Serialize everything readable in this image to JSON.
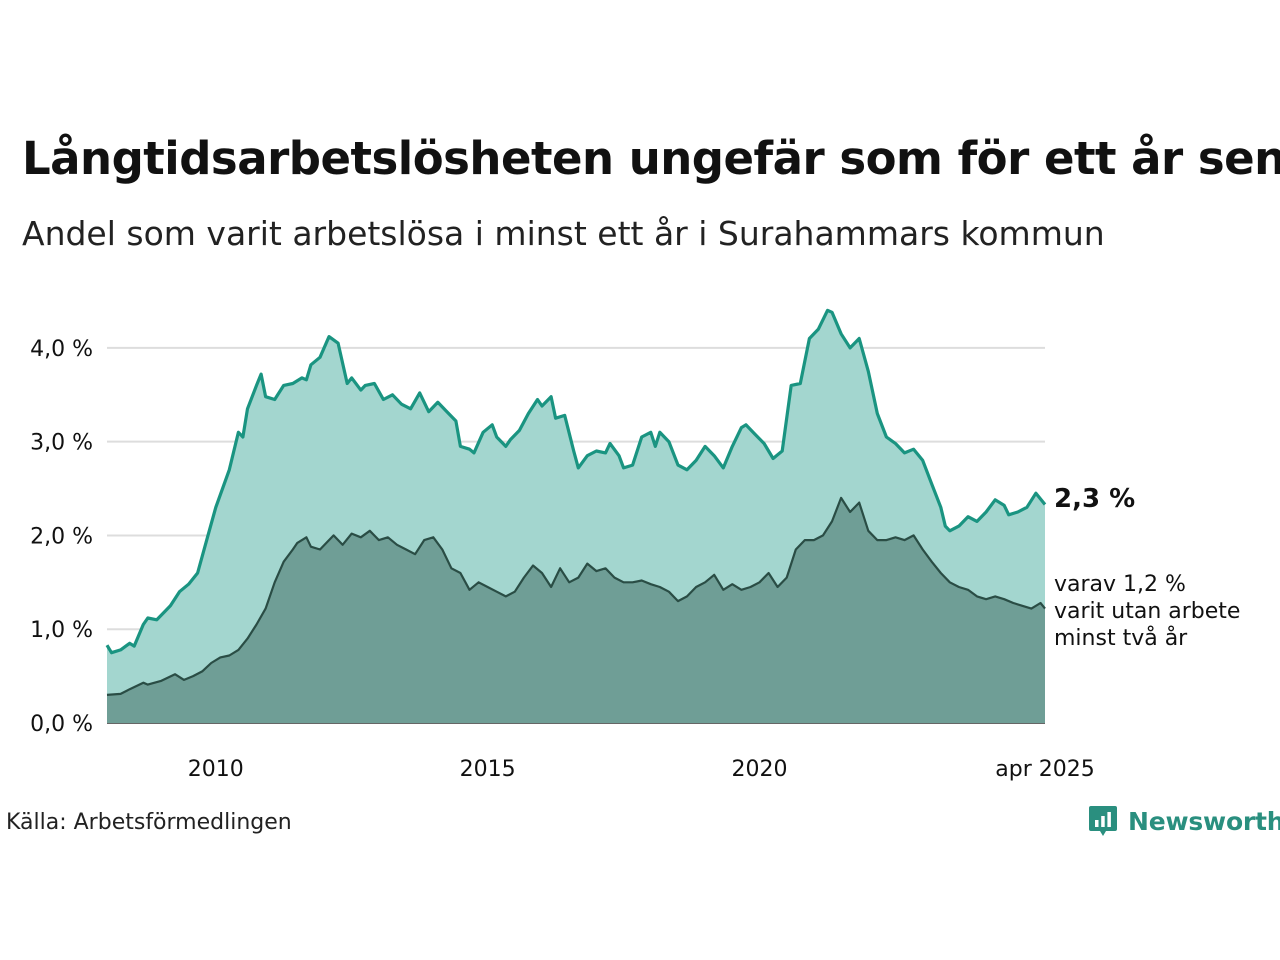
{
  "header": {
    "title": "Långtidsarbetslösheten ungefär som för ett år sen",
    "subtitle": "Andel som varit arbetslösa i minst ett år i Surahammars kommun"
  },
  "footer": {
    "source": "Källa: Arbetsförmedlingen",
    "brand": "Newsworthy"
  },
  "labels": {
    "end_value": "2,3 %",
    "sub_line1": "varav 1,2 %",
    "sub_line2": "varit utan arbete",
    "sub_line3": "minst två år"
  },
  "colors": {
    "main_line": "#1a9481",
    "main_fill": "#a3d6cf",
    "sub_line": "#2a4d45",
    "sub_fill": "#6f9e96",
    "grid": "#dddddd",
    "brand": "#2a8f7f"
  },
  "chart_data": {
    "type": "area",
    "x_start": "2008-01",
    "x_end": "2025-04",
    "x_unit": "month",
    "ylim": [
      0,
      4.5
    ],
    "yticks": [
      0,
      1,
      2,
      3,
      4
    ],
    "ytick_labels": [
      "0,0 %",
      "1,0 %",
      "2,0 %",
      "3,0 %",
      "4,0 %"
    ],
    "xtick_labels": [
      {
        "x": "2010-01",
        "label": "2010"
      },
      {
        "x": "2015-01",
        "label": "2015"
      },
      {
        "x": "2020-01",
        "label": "2020"
      },
      {
        "x": "2025-04",
        "label": "apr 2025"
      }
    ],
    "grid": true,
    "series": [
      {
        "key": "total",
        "anchors": [
          [
            "2008-01",
            0.83
          ],
          [
            "2008-02",
            0.75
          ],
          [
            "2008-04",
            0.78
          ],
          [
            "2008-06",
            0.85
          ],
          [
            "2008-07",
            0.82
          ],
          [
            "2008-09",
            1.05
          ],
          [
            "2008-10",
            1.12
          ],
          [
            "2008-12",
            1.1
          ],
          [
            "2009-03",
            1.25
          ],
          [
            "2009-05",
            1.4
          ],
          [
            "2009-07",
            1.48
          ],
          [
            "2009-09",
            1.6
          ],
          [
            "2009-11",
            1.95
          ],
          [
            "2010-01",
            2.3
          ],
          [
            "2010-04",
            2.7
          ],
          [
            "2010-06",
            3.1
          ],
          [
            "2010-07",
            3.05
          ],
          [
            "2010-08",
            3.35
          ],
          [
            "2010-10",
            3.6
          ],
          [
            "2010-11",
            3.72
          ],
          [
            "2010-12",
            3.48
          ],
          [
            "2011-02",
            3.45
          ],
          [
            "2011-04",
            3.6
          ],
          [
            "2011-06",
            3.62
          ],
          [
            "2011-08",
            3.68
          ],
          [
            "2011-09",
            3.66
          ],
          [
            "2011-10",
            3.82
          ],
          [
            "2011-12",
            3.9
          ],
          [
            "2012-02",
            4.12
          ],
          [
            "2012-04",
            4.05
          ],
          [
            "2012-06",
            3.62
          ],
          [
            "2012-07",
            3.68
          ],
          [
            "2012-09",
            3.55
          ],
          [
            "2012-10",
            3.6
          ],
          [
            "2012-12",
            3.62
          ],
          [
            "2013-02",
            3.45
          ],
          [
            "2013-04",
            3.5
          ],
          [
            "2013-06",
            3.4
          ],
          [
            "2013-08",
            3.35
          ],
          [
            "2013-10",
            3.52
          ],
          [
            "2013-12",
            3.32
          ],
          [
            "2014-02",
            3.42
          ],
          [
            "2014-04",
            3.32
          ],
          [
            "2014-06",
            3.22
          ],
          [
            "2014-07",
            2.95
          ],
          [
            "2014-09",
            2.92
          ],
          [
            "2014-10",
            2.88
          ],
          [
            "2014-12",
            3.1
          ],
          [
            "2015-02",
            3.18
          ],
          [
            "2015-03",
            3.05
          ],
          [
            "2015-05",
            2.95
          ],
          [
            "2015-06",
            3.02
          ],
          [
            "2015-08",
            3.12
          ],
          [
            "2015-10",
            3.3
          ],
          [
            "2015-12",
            3.45
          ],
          [
            "2016-01",
            3.38
          ],
          [
            "2016-03",
            3.48
          ],
          [
            "2016-04",
            3.25
          ],
          [
            "2016-06",
            3.28
          ],
          [
            "2016-08",
            2.9
          ],
          [
            "2016-09",
            2.72
          ],
          [
            "2016-11",
            2.85
          ],
          [
            "2017-01",
            2.9
          ],
          [
            "2017-03",
            2.88
          ],
          [
            "2017-04",
            2.98
          ],
          [
            "2017-06",
            2.85
          ],
          [
            "2017-07",
            2.72
          ],
          [
            "2017-09",
            2.75
          ],
          [
            "2017-11",
            3.05
          ],
          [
            "2018-01",
            3.1
          ],
          [
            "2018-02",
            2.95
          ],
          [
            "2018-03",
            3.1
          ],
          [
            "2018-05",
            3.0
          ],
          [
            "2018-07",
            2.75
          ],
          [
            "2018-09",
            2.7
          ],
          [
            "2018-11",
            2.8
          ],
          [
            "2019-01",
            2.95
          ],
          [
            "2019-03",
            2.85
          ],
          [
            "2019-05",
            2.72
          ],
          [
            "2019-07",
            2.95
          ],
          [
            "2019-09",
            3.15
          ],
          [
            "2019-10",
            3.18
          ],
          [
            "2019-12",
            3.08
          ],
          [
            "2020-02",
            2.98
          ],
          [
            "2020-04",
            2.82
          ],
          [
            "2020-06",
            2.9
          ],
          [
            "2020-08",
            3.6
          ],
          [
            "2020-10",
            3.62
          ],
          [
            "2020-12",
            4.1
          ],
          [
            "2021-02",
            4.2
          ],
          [
            "2021-04",
            4.4
          ],
          [
            "2021-05",
            4.38
          ],
          [
            "2021-07",
            4.15
          ],
          [
            "2021-09",
            4.0
          ],
          [
            "2021-11",
            4.1
          ],
          [
            "2022-01",
            3.75
          ],
          [
            "2022-03",
            3.3
          ],
          [
            "2022-05",
            3.05
          ],
          [
            "2022-07",
            2.98
          ],
          [
            "2022-09",
            2.88
          ],
          [
            "2022-11",
            2.92
          ],
          [
            "2023-01",
            2.8
          ],
          [
            "2023-03",
            2.55
          ],
          [
            "2023-05",
            2.3
          ],
          [
            "2023-06",
            2.1
          ],
          [
            "2023-07",
            2.05
          ],
          [
            "2023-09",
            2.1
          ],
          [
            "2023-11",
            2.2
          ],
          [
            "2024-01",
            2.15
          ],
          [
            "2024-03",
            2.25
          ],
          [
            "2024-05",
            2.38
          ],
          [
            "2024-07",
            2.32
          ],
          [
            "2024-08",
            2.22
          ],
          [
            "2024-10",
            2.25
          ],
          [
            "2024-12",
            2.3
          ],
          [
            "2025-02",
            2.45
          ],
          [
            "2025-04",
            2.33
          ]
        ]
      },
      {
        "key": "over_two_years",
        "anchors": [
          [
            "2008-01",
            0.3
          ],
          [
            "2008-04",
            0.31
          ],
          [
            "2008-06",
            0.36
          ],
          [
            "2008-09",
            0.43
          ],
          [
            "2008-10",
            0.41
          ],
          [
            "2009-01",
            0.45
          ],
          [
            "2009-04",
            0.52
          ],
          [
            "2009-06",
            0.46
          ],
          [
            "2009-08",
            0.5
          ],
          [
            "2009-10",
            0.55
          ],
          [
            "2009-12",
            0.64
          ],
          [
            "2010-02",
            0.7
          ],
          [
            "2010-04",
            0.72
          ],
          [
            "2010-06",
            0.78
          ],
          [
            "2010-08",
            0.9
          ],
          [
            "2010-10",
            1.05
          ],
          [
            "2010-12",
            1.22
          ],
          [
            "2011-02",
            1.5
          ],
          [
            "2011-04",
            1.72
          ],
          [
            "2011-06",
            1.85
          ],
          [
            "2011-07",
            1.92
          ],
          [
            "2011-09",
            1.98
          ],
          [
            "2011-10",
            1.88
          ],
          [
            "2011-12",
            1.85
          ],
          [
            "2012-02",
            1.95
          ],
          [
            "2012-03",
            2.0
          ],
          [
            "2012-05",
            1.9
          ],
          [
            "2012-07",
            2.02
          ],
          [
            "2012-09",
            1.98
          ],
          [
            "2012-11",
            2.05
          ],
          [
            "2013-01",
            1.95
          ],
          [
            "2013-03",
            1.98
          ],
          [
            "2013-05",
            1.9
          ],
          [
            "2013-07",
            1.85
          ],
          [
            "2013-09",
            1.8
          ],
          [
            "2013-11",
            1.95
          ],
          [
            "2014-01",
            1.98
          ],
          [
            "2014-03",
            1.85
          ],
          [
            "2014-05",
            1.65
          ],
          [
            "2014-07",
            1.6
          ],
          [
            "2014-09",
            1.42
          ],
          [
            "2014-11",
            1.5
          ],
          [
            "2015-01",
            1.45
          ],
          [
            "2015-03",
            1.4
          ],
          [
            "2015-05",
            1.35
          ],
          [
            "2015-07",
            1.4
          ],
          [
            "2015-09",
            1.55
          ],
          [
            "2015-11",
            1.68
          ],
          [
            "2016-01",
            1.6
          ],
          [
            "2016-03",
            1.45
          ],
          [
            "2016-05",
            1.65
          ],
          [
            "2016-07",
            1.5
          ],
          [
            "2016-09",
            1.55
          ],
          [
            "2016-11",
            1.7
          ],
          [
            "2017-01",
            1.62
          ],
          [
            "2017-03",
            1.65
          ],
          [
            "2017-05",
            1.55
          ],
          [
            "2017-07",
            1.5
          ],
          [
            "2017-09",
            1.5
          ],
          [
            "2017-11",
            1.52
          ],
          [
            "2018-01",
            1.48
          ],
          [
            "2018-03",
            1.45
          ],
          [
            "2018-05",
            1.4
          ],
          [
            "2018-07",
            1.3
          ],
          [
            "2018-09",
            1.35
          ],
          [
            "2018-11",
            1.45
          ],
          [
            "2019-01",
            1.5
          ],
          [
            "2019-03",
            1.58
          ],
          [
            "2019-05",
            1.42
          ],
          [
            "2019-07",
            1.48
          ],
          [
            "2019-09",
            1.42
          ],
          [
            "2019-11",
            1.45
          ],
          [
            "2020-01",
            1.5
          ],
          [
            "2020-03",
            1.6
          ],
          [
            "2020-05",
            1.45
          ],
          [
            "2020-07",
            1.55
          ],
          [
            "2020-09",
            1.85
          ],
          [
            "2020-11",
            1.95
          ],
          [
            "2021-01",
            1.95
          ],
          [
            "2021-03",
            2.0
          ],
          [
            "2021-05",
            2.15
          ],
          [
            "2021-07",
            2.4
          ],
          [
            "2021-09",
            2.25
          ],
          [
            "2021-11",
            2.35
          ],
          [
            "2022-01",
            2.05
          ],
          [
            "2022-03",
            1.95
          ],
          [
            "2022-05",
            1.95
          ],
          [
            "2022-07",
            1.98
          ],
          [
            "2022-09",
            1.95
          ],
          [
            "2022-11",
            2.0
          ],
          [
            "2023-01",
            1.85
          ],
          [
            "2023-03",
            1.72
          ],
          [
            "2023-05",
            1.6
          ],
          [
            "2023-07",
            1.5
          ],
          [
            "2023-09",
            1.45
          ],
          [
            "2023-11",
            1.42
          ],
          [
            "2024-01",
            1.35
          ],
          [
            "2024-03",
            1.32
          ],
          [
            "2024-05",
            1.35
          ],
          [
            "2024-07",
            1.32
          ],
          [
            "2024-09",
            1.28
          ],
          [
            "2024-11",
            1.25
          ],
          [
            "2025-01",
            1.22
          ],
          [
            "2025-03",
            1.28
          ],
          [
            "2025-04",
            1.22
          ]
        ]
      }
    ]
  }
}
